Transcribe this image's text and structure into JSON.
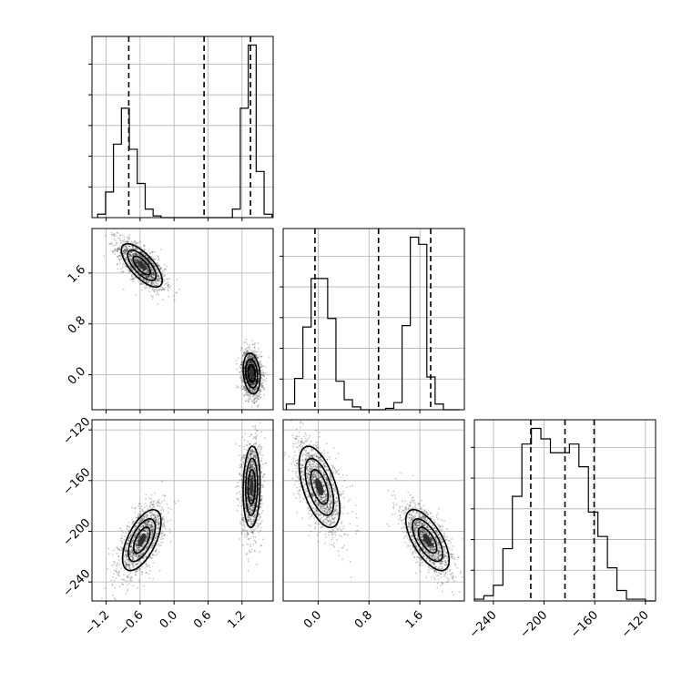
{
  "chart_data": {
    "type": "corner",
    "grid": true,
    "variables": [
      {
        "label": "",
        "range": [
          -1.45,
          1.75
        ],
        "ticks": [
          -1.2,
          -0.6,
          0.0,
          0.6,
          1.2
        ],
        "tick_labels": [
          "−1.2",
          "−0.6",
          "0.0",
          "0.6",
          "1.2"
        ]
      },
      {
        "label": "",
        "range": [
          -0.55,
          2.3
        ],
        "ticks": [
          0.0,
          0.8,
          1.6
        ],
        "tick_labels": [
          "0.0",
          "0.8",
          "1.6"
        ]
      },
      {
        "label": "",
        "range": [
          -255,
          -112
        ],
        "ticks": [
          -240,
          -200,
          -160,
          -120
        ],
        "tick_labels": [
          "−240",
          "−200",
          "−160",
          "−120"
        ]
      }
    ],
    "histograms": [
      {
        "variable": 0,
        "bin_edges": [
          -1.35,
          -1.21,
          -1.07,
          -0.93,
          -0.79,
          -0.65,
          -0.51,
          -0.37,
          -0.23,
          -0.09,
          0.05,
          0.19,
          0.33,
          0.47,
          0.61,
          0.75,
          0.89,
          1.03,
          1.17,
          1.31,
          1.45,
          1.59,
          1.73
        ],
        "counts": [
          2,
          15,
          43,
          64,
          40,
          20,
          5,
          1,
          0,
          0,
          0,
          0,
          0,
          0,
          0,
          0,
          0,
          5,
          64,
          101,
          27,
          2
        ],
        "quantiles": [
          -0.8,
          0.53,
          1.35
        ]
      },
      {
        "variable": 1,
        "bin_edges": [
          -0.5,
          -0.37,
          -0.24,
          -0.11,
          0.02,
          0.15,
          0.28,
          0.41,
          0.54,
          0.67,
          0.8,
          0.93,
          1.06,
          1.19,
          1.32,
          1.45,
          1.58,
          1.71,
          1.84,
          1.97,
          2.1,
          2.23
        ],
        "counts": [
          4,
          22,
          58,
          92,
          92,
          64,
          20,
          7,
          2,
          0,
          0,
          0,
          1,
          5,
          59,
          121,
          116,
          23,
          4,
          0,
          0
        ],
        "quantiles": [
          -0.05,
          0.95,
          1.77
        ]
      },
      {
        "variable": 2,
        "bin_edges": [
          -255,
          -247.5,
          -240,
          -232.5,
          -225,
          -217.5,
          -210,
          -202.5,
          -195,
          -187.5,
          -180,
          -172.5,
          -165,
          -157.5,
          -150,
          -142.5,
          -135,
          -127.5,
          -120,
          -112.5
        ],
        "counts": [
          1,
          3,
          9,
          30,
          60,
          90,
          99,
          93,
          85,
          85,
          90,
          77,
          51,
          37,
          19,
          6,
          1,
          1,
          0
        ],
        "quantiles": [
          -210.5,
          -183.5,
          -160.5
        ]
      }
    ],
    "scatter_panels": [
      {
        "x_var": 0,
        "y_var": 1,
        "clusters": [
          {
            "mean": [
              -0.57,
              1.72
            ],
            "sd": [
              0.18,
              0.17
            ],
            "corr": -0.7
          },
          {
            "mean": [
              1.37,
              0.02
            ],
            "sd": [
              0.075,
              0.16
            ],
            "corr": -0.2
          }
        ]
      },
      {
        "x_var": 0,
        "y_var": 2,
        "clusters": [
          {
            "mean": [
              -0.57,
              -207
            ],
            "sd": [
              0.17,
              12
            ],
            "corr": 0.6
          },
          {
            "mean": [
              1.37,
              -165
            ],
            "sd": [
              0.075,
              16
            ],
            "corr": 0.1
          }
        ]
      },
      {
        "x_var": 1,
        "y_var": 2,
        "clusters": [
          {
            "mean": [
              0.02,
              -165
            ],
            "sd": [
              0.16,
              16
            ],
            "corr": -0.55
          },
          {
            "mean": [
              1.72,
              -207
            ],
            "sd": [
              0.17,
              12
            ],
            "corr": -0.65
          }
        ]
      }
    ]
  }
}
